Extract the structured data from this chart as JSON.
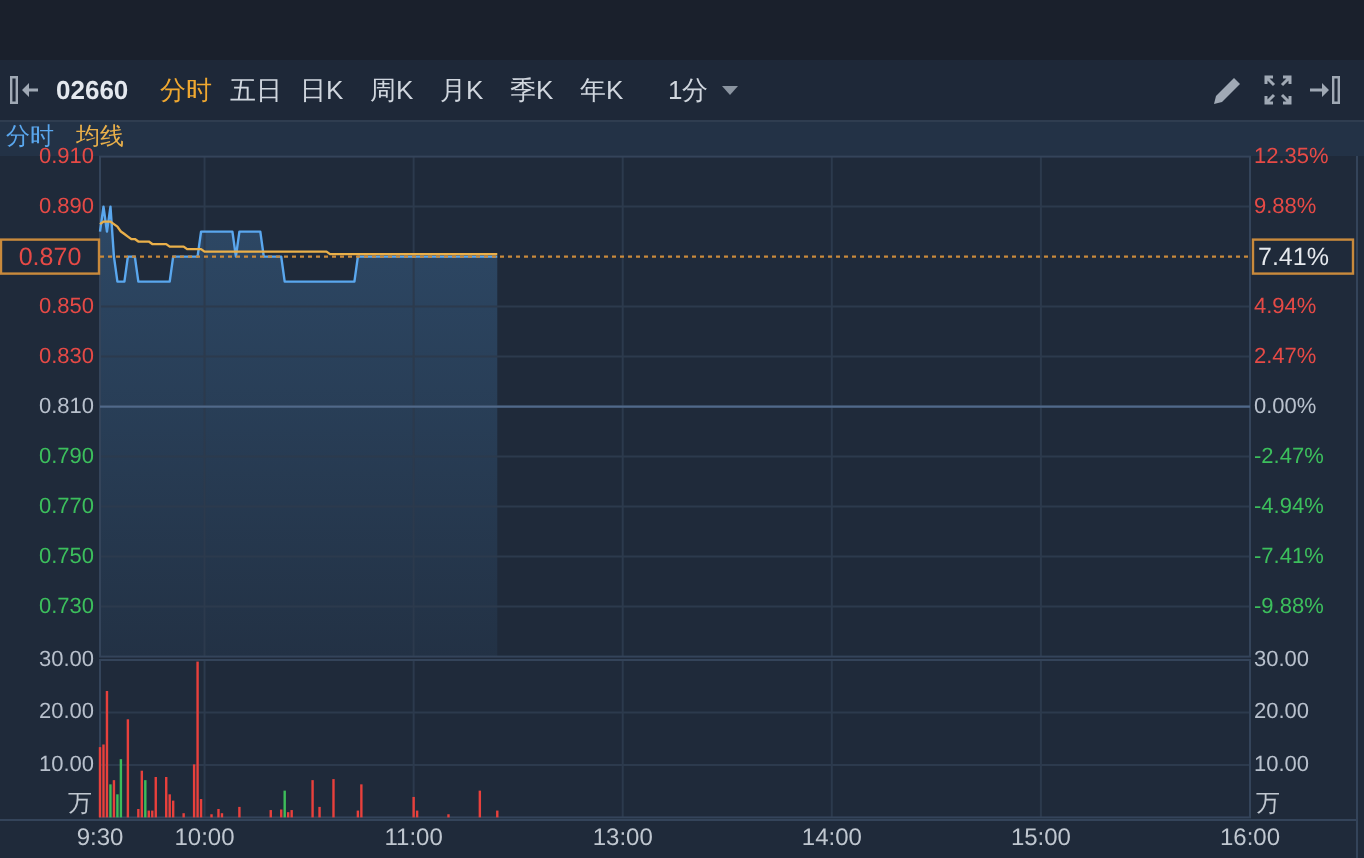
{
  "chart_data": [
    {
      "type": "line",
      "title": "02660",
      "annotations": [
        "分时",
        "五日",
        "日K",
        "周K",
        "月K",
        "季K",
        "年K",
        "1分"
      ],
      "categories": [
        null,
        null,
        null,
        null,
        null,
        null,
        null,
        null,
        null,
        null,
        null,
        null,
        null,
        null,
        null,
        null,
        null,
        null,
        null,
        null,
        null,
        null,
        null,
        null,
        null,
        null,
        null,
        null,
        null,
        null,
        null,
        null,
        null,
        null,
        null,
        null,
        null,
        null,
        null,
        null,
        null,
        null,
        null,
        null,
        null,
        null,
        null,
        null,
        null,
        null,
        null,
        null,
        null,
        null,
        null,
        null,
        null,
        null,
        null,
        null,
        null,
        null,
        null,
        null,
        null,
        null,
        null,
        null,
        null,
        null,
        null,
        null,
        null,
        null,
        null,
        null,
        null,
        null,
        null,
        null,
        null,
        null,
        null,
        null,
        null,
        null,
        null,
        null,
        null,
        null,
        null,
        null,
        null,
        null,
        null,
        null,
        null,
        null,
        null,
        null,
        null,
        null,
        null,
        null,
        null,
        null,
        null,
        null,
        null,
        null,
        null,
        null,
        null,
        null,
        null,
        null,
        null,
        null,
        null,
        null,
        null,
        null,
        null,
        null,
        null,
        null,
        null,
        null,
        null,
        null,
        null,
        null,
        null,
        null,
        null,
        null,
        null,
        null,
        null,
        null,
        null,
        null,
        null,
        null,
        null,
        null,
        null,
        null,
        null,
        null,
        null,
        null,
        null,
        null,
        null,
        null,
        null,
        null,
        null,
        null,
        null,
        null,
        null,
        null,
        null,
        null,
        null,
        null,
        null,
        null,
        null,
        null,
        null,
        null,
        null,
        null,
        null,
        null,
        null,
        null,
        null,
        null,
        null,
        null,
        null,
        null,
        null,
        null,
        null,
        null,
        null,
        null,
        null,
        null,
        null,
        null,
        null,
        null,
        null,
        null,
        null,
        null,
        null,
        null,
        null,
        null,
        null,
        null,
        null,
        null,
        null,
        null,
        null,
        null,
        null,
        null,
        null,
        null,
        null,
        null,
        null,
        null,
        null,
        null,
        null,
        null,
        null,
        null,
        null,
        null,
        null,
        null,
        null,
        null,
        null,
        null,
        null,
        null,
        null,
        null,
        null,
        null,
        null,
        null,
        null,
        null,
        null,
        null,
        null,
        null,
        null,
        null,
        null,
        null,
        null,
        null,
        null,
        null,
        null,
        null,
        null,
        null,
        null,
        null,
        null,
        null,
        null,
        null,
        null,
        null,
        null,
        null,
        null,
        null,
        null,
        null,
        null,
        null,
        null,
        null,
        null,
        null,
        null,
        null,
        null,
        null,
        null,
        null,
        null,
        null,
        null,
        null,
        null,
        null,
        null,
        null,
        null,
        null,
        null,
        null,
        null,
        null,
        null,
        null,
        null,
        null,
        null,
        null,
        null,
        null,
        null,
        null,
        null,
        null,
        null,
        null,
        null,
        null,
        null,
        null,
        null,
        null,
        null,
        null,
        null,
        null,
        null,
        null,
        null,
        null,
        null
      ],
      "series": [
        {
          "name": "分时",
          "type": "area",
          "color": "#5aa7ee",
          "values": [
            0.88,
            0.89,
            0.88,
            0.89,
            0.87,
            0.86,
            0.86,
            0.86,
            0.87,
            0.87,
            0.87,
            0.86,
            0.86,
            0.86,
            0.86,
            0.86,
            0.86,
            0.86,
            0.86,
            0.86,
            0.86,
            0.87,
            0.87,
            0.87,
            0.87,
            0.87,
            0.87,
            0.87,
            0.87,
            0.88,
            0.88,
            0.88,
            0.88,
            0.88,
            0.88,
            0.88,
            0.88,
            0.88,
            0.88,
            0.87,
            0.88,
            0.88,
            0.88,
            0.88,
            0.88,
            0.88,
            0.88,
            0.87,
            0.87,
            0.87,
            0.87,
            0.87,
            0.87,
            0.86,
            0.86,
            0.86,
            0.86,
            0.86,
            0.86,
            0.86,
            0.86,
            0.86,
            0.86,
            0.86,
            0.86,
            0.86,
            0.86,
            0.86,
            0.86,
            0.86,
            0.86,
            0.86,
            0.86,
            0.86,
            0.87,
            0.87,
            0.87,
            0.87,
            0.87,
            0.87,
            0.87,
            0.87,
            0.87,
            0.87,
            0.87,
            0.87,
            0.87,
            0.87,
            0.87,
            0.87,
            0.87,
            0.87,
            0.87,
            0.87,
            0.87,
            0.87,
            0.87,
            0.87,
            0.87,
            0.87,
            0.87,
            0.87,
            0.87,
            0.87,
            0.87,
            0.87,
            0.87,
            0.87,
            0.87,
            0.87,
            0.87,
            0.87,
            0.87,
            0.87,
            0.87,
            null,
            null,
            null,
            null,
            null,
            null,
            null,
            null,
            null,
            null,
            null,
            null,
            null,
            null,
            null,
            null,
            null,
            null,
            null,
            null,
            null,
            null,
            null,
            null,
            null,
            null,
            null,
            null,
            null,
            null,
            null,
            null,
            null,
            null,
            null,
            null,
            null,
            null,
            null,
            null,
            null,
            null,
            null,
            null,
            null,
            null,
            null,
            null,
            null,
            null,
            null,
            null,
            null,
            null,
            null,
            null,
            null,
            null,
            null,
            null,
            null,
            null,
            null,
            null,
            null,
            null,
            null,
            null,
            null,
            null,
            null,
            null,
            null,
            null,
            null,
            null,
            null,
            null,
            null,
            null,
            null,
            null,
            null,
            null,
            null,
            null,
            null,
            null,
            null,
            null,
            null,
            null,
            null,
            null,
            null,
            null,
            null,
            null,
            null,
            null,
            null,
            null,
            null,
            null,
            null,
            null,
            null,
            null,
            null,
            null,
            null,
            null,
            null,
            null,
            null,
            null,
            null,
            null,
            null,
            null,
            null,
            null,
            null,
            null,
            null,
            null,
            null,
            null,
            null,
            null,
            null,
            null,
            null,
            null,
            null,
            null,
            null,
            null,
            null,
            null,
            null,
            null,
            null,
            null,
            null,
            null,
            null,
            null,
            null,
            null,
            null,
            null,
            null,
            null,
            null,
            null,
            null,
            null,
            null,
            null,
            null,
            null,
            null,
            null,
            null,
            null,
            null,
            null,
            null,
            null,
            null,
            null,
            null,
            null,
            null,
            null,
            null,
            null,
            null,
            null,
            null,
            null,
            null,
            null,
            null,
            null,
            null,
            null,
            null,
            null,
            null,
            null,
            null,
            null,
            null,
            null,
            null,
            null,
            null,
            null,
            null,
            null,
            null,
            null,
            null,
            null,
            null,
            null,
            null,
            null,
            null,
            null,
            null,
            null,
            null,
            null
          ]
        },
        {
          "name": "均线",
          "color": "#eab04a",
          "values": [
            0.883,
            0.884,
            0.884,
            0.884,
            0.883,
            0.882,
            0.88,
            0.879,
            0.878,
            0.877,
            0.877,
            0.876,
            0.876,
            0.876,
            0.876,
            0.875,
            0.875,
            0.875,
            0.875,
            0.875,
            0.874,
            0.874,
            0.874,
            0.874,
            0.874,
            0.873,
            0.873,
            0.873,
            0.873,
            0.873,
            0.872,
            0.872,
            0.872,
            0.872,
            0.872,
            0.872,
            0.872,
            0.872,
            0.872,
            0.872,
            0.872,
            0.872,
            0.872,
            0.872,
            0.872,
            0.872,
            0.872,
            0.872,
            0.872,
            0.872,
            0.872,
            0.872,
            0.872,
            0.872,
            0.872,
            0.872,
            0.872,
            0.872,
            0.872,
            0.872,
            0.872,
            0.872,
            0.872,
            0.872,
            0.872,
            0.872,
            0.871,
            0.871,
            0.871,
            0.871,
            0.871,
            0.871,
            0.871,
            0.871,
            0.871,
            0.871,
            0.871,
            0.871,
            0.871,
            0.871,
            0.871,
            0.871,
            0.871,
            0.871,
            0.871,
            0.871,
            0.871,
            0.871,
            0.871,
            0.871,
            0.871,
            0.871,
            0.871,
            0.871,
            0.871,
            0.871,
            0.871,
            0.871,
            0.871,
            0.871,
            0.871,
            0.871,
            0.871,
            0.871,
            0.871,
            0.871,
            0.871,
            0.871,
            0.871,
            0.871,
            0.871,
            0.871,
            0.871,
            0.871,
            0.871,
            null,
            null,
            null,
            null,
            null,
            null,
            null,
            null,
            null,
            null,
            null,
            null,
            null,
            null,
            null,
            null,
            null,
            null,
            null,
            null,
            null,
            null,
            null,
            null,
            null,
            null,
            null,
            null,
            null,
            null,
            null,
            null,
            null,
            null,
            null,
            null,
            null,
            null,
            null,
            null,
            null,
            null,
            null,
            null,
            null,
            null,
            null,
            null,
            null,
            null,
            null,
            null,
            null,
            null,
            null,
            null,
            null,
            null,
            null,
            null,
            null,
            null,
            null,
            null,
            null,
            null,
            null,
            null,
            null,
            null,
            null,
            null,
            null,
            null,
            null,
            null,
            null,
            null,
            null,
            null,
            null,
            null,
            null,
            null,
            null,
            null,
            null,
            null,
            null,
            null,
            null,
            null,
            null,
            null,
            null,
            null,
            null,
            null,
            null,
            null,
            null,
            null,
            null,
            null,
            null,
            null,
            null,
            null,
            null,
            null,
            null,
            null,
            null,
            null,
            null,
            null,
            null,
            null,
            null,
            null,
            null,
            null,
            null,
            null,
            null,
            null,
            null,
            null,
            null,
            null,
            null,
            null,
            null,
            null,
            null,
            null,
            null,
            null,
            null,
            null,
            null,
            null,
            null,
            null,
            null,
            null,
            null,
            null,
            null,
            null,
            null,
            null,
            null,
            null,
            null,
            null,
            null,
            null,
            null,
            null,
            null,
            null,
            null,
            null,
            null,
            null,
            null,
            null,
            null,
            null,
            null,
            null,
            null,
            null,
            null,
            null,
            null,
            null,
            null,
            null,
            null,
            null,
            null,
            null,
            null,
            null,
            null,
            null,
            null,
            null,
            null,
            null,
            null,
            null,
            null,
            null,
            null,
            null,
            null,
            null,
            null,
            null,
            null,
            null,
            null,
            null,
            null,
            null,
            null,
            null,
            null,
            null,
            null,
            null,
            null,
            null
          ]
        }
      ],
      "ylim": [
        0.71,
        0.91
      ],
      "yticks": [
        {
          "value": 0.73,
          "label": "0.730"
        },
        {
          "value": 0.75,
          "label": "0.750"
        },
        {
          "value": 0.77,
          "label": "0.770"
        },
        {
          "value": 0.79,
          "label": "0.790"
        },
        {
          "value": 0.81,
          "label": "0.810"
        },
        {
          "value": 0.83,
          "label": "0.830"
        },
        {
          "value": 0.85,
          "label": "0.850"
        },
        {
          "value": 0.89,
          "label": "0.890"
        },
        {
          "value": 0.91,
          "label": "0.910"
        }
      ],
      "y2lim": [
        -12.35,
        12.35
      ],
      "y2ticks": [
        {
          "value": -9.88,
          "label": "-9.88%"
        },
        {
          "value": -7.41,
          "label": "-7.41%"
        },
        {
          "value": -4.94,
          "label": "-4.94%"
        },
        {
          "value": -2.47,
          "label": "-2.47%"
        },
        {
          "value": 0,
          "label": "0.00%"
        },
        {
          "value": 2.47,
          "label": "2.47%"
        },
        {
          "value": 4.94,
          "label": "4.94%"
        },
        {
          "value": 7.41,
          "label": "7.41%"
        },
        {
          "value": 9.88,
          "label": "9.88%"
        },
        {
          "value": 12.35,
          "label": "12.35%"
        }
      ],
      "ref_lines": [
        {
          "axis": "y",
          "value": 0.81,
          "color": "#50698a"
        },
        {
          "axis": "y",
          "value": 0.87,
          "label": "0.870",
          "color": "#c98a3c",
          "line_style": "dotted"
        }
      ],
      "grid": true,
      "legend": "top left",
      "tick_labels": "y"
    },
    {
      "type": "bar",
      "categories": [
        "9:30",
        null,
        null,
        null,
        null,
        null,
        null,
        null,
        null,
        null,
        null,
        null,
        null,
        null,
        null,
        null,
        null,
        null,
        null,
        null,
        null,
        null,
        null,
        null,
        null,
        null,
        null,
        null,
        null,
        null,
        "10:00",
        null,
        null,
        null,
        null,
        null,
        null,
        null,
        null,
        null,
        null,
        null,
        null,
        null,
        null,
        null,
        null,
        null,
        null,
        null,
        null,
        null,
        null,
        null,
        null,
        null,
        null,
        null,
        null,
        null,
        null,
        null,
        null,
        null,
        null,
        null,
        null,
        null,
        null,
        null,
        null,
        null,
        null,
        null,
        null,
        null,
        null,
        null,
        null,
        null,
        null,
        null,
        null,
        null,
        null,
        null,
        null,
        null,
        null,
        null,
        "11:00",
        null,
        null,
        null,
        null,
        null,
        null,
        null,
        null,
        null,
        null,
        null,
        null,
        null,
        null,
        null,
        null,
        null,
        null,
        null,
        null,
        null,
        null,
        null,
        null,
        null,
        null,
        null,
        null,
        null,
        null,
        null,
        null,
        null,
        null,
        null,
        null,
        null,
        null,
        null,
        null,
        null,
        null,
        null,
        null,
        null,
        null,
        null,
        null,
        null,
        null,
        null,
        null,
        null,
        null,
        null,
        null,
        null,
        null,
        null,
        "13:00",
        null,
        null,
        null,
        null,
        null,
        null,
        null,
        null,
        null,
        null,
        null,
        null,
        null,
        null,
        null,
        null,
        null,
        null,
        null,
        null,
        null,
        null,
        null,
        null,
        null,
        null,
        null,
        null,
        null,
        null,
        null,
        null,
        null,
        null,
        null,
        null,
        null,
        null,
        null,
        null,
        null,
        null,
        null,
        null,
        null,
        null,
        null,
        null,
        null,
        null,
        null,
        null,
        null,
        null,
        null,
        null,
        null,
        null,
        null,
        "14:00",
        null,
        null,
        null,
        null,
        null,
        null,
        null,
        null,
        null,
        null,
        null,
        null,
        null,
        null,
        null,
        null,
        null,
        null,
        null,
        null,
        null,
        null,
        null,
        null,
        null,
        null,
        null,
        null,
        null,
        null,
        null,
        null,
        null,
        null,
        null,
        null,
        null,
        null,
        null,
        null,
        null,
        null,
        null,
        null,
        null,
        null,
        null,
        null,
        null,
        null,
        null,
        null,
        null,
        null,
        null,
        null,
        null,
        null,
        null,
        "15:00",
        null,
        null,
        null,
        null,
        null,
        null,
        null,
        null,
        null,
        null,
        null,
        null,
        null,
        null,
        null,
        null,
        null,
        null,
        null,
        null,
        null,
        null,
        null,
        null,
        null,
        null,
        null,
        null,
        null,
        null,
        null,
        null,
        null,
        null,
        null,
        null,
        null,
        null,
        null,
        null,
        null,
        null,
        null,
        null,
        null,
        null,
        null,
        null,
        null,
        null,
        null,
        null,
        null,
        null,
        null,
        null,
        null,
        null,
        null,
        "16:00"
      ],
      "values": [
        13.4,
        13.9,
        24.1,
        6.3,
        7.1,
        4.4,
        11.1,
        null,
        18.7,
        null,
        null,
        1.6,
        8.9,
        7.1,
        1.3,
        1.3,
        7.7,
        null,
        null,
        7.7,
        4.4,
        3.2,
        null,
        null,
        0.8,
        null,
        null,
        10.1,
        29.7,
        3.5,
        null,
        null,
        0.6,
        null,
        1.6,
        0.8,
        null,
        null,
        null,
        null,
        2.0,
        null,
        null,
        null,
        null,
        null,
        null,
        null,
        null,
        1.4,
        null,
        null,
        1.5,
        5.1,
        1.0,
        1.4,
        null,
        null,
        null,
        null,
        null,
        7.1,
        null,
        2.0,
        null,
        null,
        null,
        7.3,
        null,
        null,
        null,
        null,
        null,
        null,
        1.3,
        6.3,
        null,
        null,
        null,
        null,
        null,
        null,
        null,
        null,
        null,
        null,
        null,
        null,
        null,
        null,
        3.9,
        1.3,
        null,
        null,
        null,
        null,
        null,
        null,
        null,
        null,
        0.6,
        null,
        null,
        null,
        null,
        null,
        null,
        null,
        null,
        5.1,
        null,
        null,
        null,
        null,
        1.3,
        null,
        null,
        null,
        null,
        null,
        null,
        null,
        null,
        null,
        null,
        null,
        null,
        null,
        null,
        null,
        null,
        null,
        null,
        null,
        null,
        null,
        null,
        null,
        null,
        null,
        null,
        null,
        null,
        null,
        null,
        null,
        null,
        null,
        null,
        null,
        null,
        null,
        null,
        null,
        null,
        null,
        null,
        null,
        null,
        null,
        null,
        null,
        null,
        null,
        null,
        null,
        null,
        null,
        null,
        null,
        null,
        null,
        null,
        null,
        null,
        null,
        null,
        null,
        null,
        null,
        null,
        null,
        null,
        null,
        null,
        null,
        null,
        null,
        null,
        null,
        null,
        null,
        null,
        null,
        null,
        null,
        null,
        null,
        null,
        null,
        null,
        null,
        null,
        null,
        null,
        null,
        null,
        null,
        null,
        null,
        null,
        null,
        null,
        null,
        null,
        null,
        null,
        null,
        null,
        null,
        null,
        null,
        null,
        null,
        null,
        null,
        null,
        null,
        null,
        null,
        null,
        null,
        null,
        null,
        null,
        null,
        null,
        null,
        null,
        null,
        null,
        null,
        null,
        null,
        null,
        null,
        null,
        null,
        null,
        null,
        null,
        null,
        null,
        null,
        null,
        null,
        null,
        null,
        null,
        null,
        null,
        null,
        null,
        null,
        null,
        null,
        null,
        null,
        null,
        null,
        null,
        null,
        null,
        null,
        null,
        null,
        null,
        null,
        null,
        null,
        null,
        null,
        null,
        null,
        null,
        null,
        null,
        null,
        null,
        null,
        null,
        null,
        null,
        null,
        null,
        null,
        null,
        null,
        null,
        null,
        null,
        null,
        null,
        null,
        null,
        null,
        null,
        null,
        null,
        null,
        null,
        null,
        null,
        null,
        null,
        null,
        null,
        null,
        null,
        null,
        null,
        null,
        null,
        null,
        null,
        null,
        null,
        null,
        null,
        null,
        null
      ],
      "colors": [
        "#e8403c",
        "#e8403c",
        "#e8403c",
        "#3dbd5a",
        "#e8403c",
        "#3dbd5a",
        "#3dbd5a",
        null,
        "#e8403c",
        null,
        null,
        "#e8403c",
        "#e8403c",
        "#3dbd5a",
        "#e8403c",
        "#e8403c",
        "#e8403c",
        null,
        null,
        "#e8403c",
        "#e8403c",
        "#e8403c",
        null,
        null,
        "#e8403c",
        null,
        null,
        "#e8403c",
        "#e8403c",
        "#e8403c",
        null,
        null,
        "#e8403c",
        null,
        "#e8403c",
        "#e8403c",
        null,
        null,
        null,
        null,
        "#e8403c",
        null,
        null,
        null,
        null,
        null,
        null,
        null,
        null,
        "#e8403c",
        null,
        null,
        "#e8403c",
        "#3dbd5a",
        "#e8403c",
        "#e8403c",
        null,
        null,
        null,
        null,
        null,
        "#e8403c",
        null,
        "#e8403c",
        null,
        null,
        null,
        "#e8403c",
        null,
        null,
        null,
        null,
        null,
        null,
        "#e8403c",
        "#e8403c",
        null,
        null,
        null,
        null,
        null,
        null,
        null,
        null,
        null,
        null,
        null,
        null,
        null,
        null,
        "#e8403c",
        "#e8403c",
        null,
        null,
        null,
        null,
        null,
        null,
        null,
        null,
        "#e8403c",
        null,
        null,
        null,
        null,
        null,
        null,
        null,
        null,
        "#e8403c",
        null,
        null,
        null,
        null,
        "#e8403c",
        null,
        null,
        null,
        null,
        null,
        null,
        null,
        null,
        null,
        null,
        null,
        null,
        null,
        null,
        null,
        null,
        null,
        null,
        null,
        null,
        null,
        null,
        null,
        null,
        null,
        null,
        null,
        null,
        null,
        null,
        null,
        null,
        null,
        null,
        null,
        null,
        null,
        null,
        null,
        null,
        null,
        null,
        null,
        null,
        null,
        null,
        null,
        null,
        null,
        null,
        null,
        null,
        null,
        null,
        null,
        null,
        null,
        null,
        null,
        null,
        null,
        null,
        null,
        null,
        null,
        null,
        null,
        null,
        null,
        null,
        null,
        null,
        null,
        null,
        null,
        null,
        null,
        null,
        null,
        null,
        null,
        null,
        null,
        null,
        null,
        null,
        null,
        null,
        null,
        null,
        null,
        null,
        null,
        null,
        null,
        null,
        null,
        null,
        null,
        null,
        null,
        null,
        null,
        null,
        null,
        null,
        null,
        null,
        null,
        null,
        null,
        null,
        null,
        null,
        null,
        null,
        null,
        null,
        null,
        null,
        null,
        null,
        null,
        null,
        null,
        null,
        null,
        null,
        null,
        null,
        null,
        null,
        null,
        null,
        null,
        null,
        null,
        null,
        null,
        null,
        null,
        null,
        null,
        null,
        null,
        null,
        null,
        null,
        null,
        null,
        null,
        null,
        null,
        null,
        null,
        null,
        null,
        null,
        null,
        null,
        null,
        null,
        null,
        null,
        null,
        null,
        null,
        null,
        null,
        null,
        null,
        null,
        null,
        null,
        null,
        null,
        null,
        null,
        null,
        null,
        null,
        null,
        null,
        null,
        null,
        null,
        null,
        null,
        null,
        null,
        null,
        null,
        null,
        null,
        null,
        null,
        null,
        null,
        null,
        null,
        null,
        null,
        null,
        null,
        null,
        null,
        null,
        null,
        null,
        null,
        null,
        null,
        null,
        null,
        null,
        null
      ],
      "ylim": [
        0,
        30
      ],
      "yticks": [
        {
          "value": 10,
          "label": "10.00"
        },
        {
          "value": 20,
          "label": "20.00"
        },
        {
          "value": 30,
          "label": "30.00"
        }
      ],
      "y2lim": [
        0,
        30
      ],
      "y2ticks": [
        {
          "value": 10,
          "label": "10.00"
        },
        {
          "value": 20,
          "label": "20.00"
        },
        {
          "value": 30,
          "label": "30.00"
        }
      ],
      "ylabel": "万",
      "y2label": "万",
      "grid": true
    }
  ]
}
